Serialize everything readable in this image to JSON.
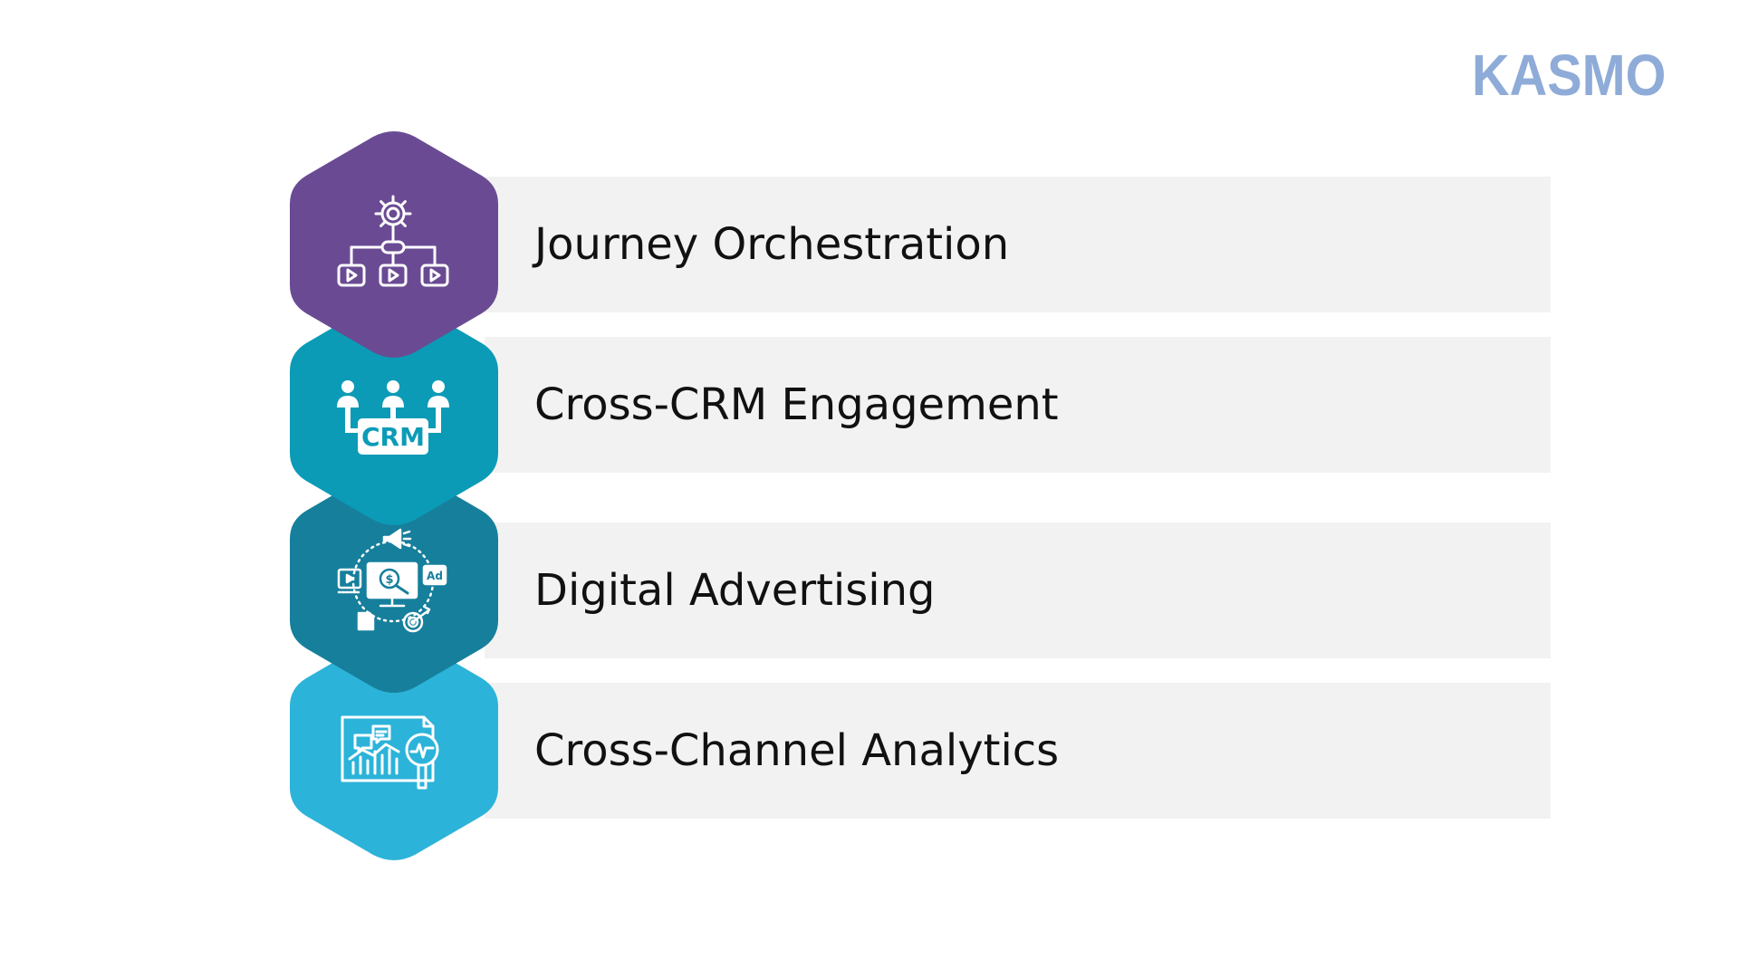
{
  "brand": {
    "logo_text": "KASMO",
    "logo_color": "#8fabd8"
  },
  "items": [
    {
      "label": "Journey Orchestration",
      "color": "#6a4b93",
      "icon": "workflow-gear-icon"
    },
    {
      "label": "Cross-CRM Engagement",
      "color": "#0b9bb6",
      "icon": "crm-people-icon"
    },
    {
      "label": "Digital Advertising",
      "color": "#167f9c",
      "icon": "digital-advertising-icon"
    },
    {
      "label": "Cross-Channel Analytics",
      "color": "#2cb3d9",
      "icon": "analytics-dashboard-icon"
    }
  ],
  "colors": {
    "bar_background": "#f2f2f2",
    "text": "#111111",
    "icon_stroke": "#ffffff"
  }
}
